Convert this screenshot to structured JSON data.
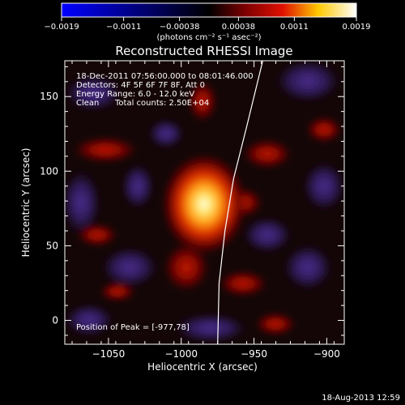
{
  "chart_data": {
    "type": "heatmap",
    "title": "Reconstructed RHESSI Image",
    "xlabel": "Heliocentric X (arcsec)",
    "ylabel": "Heliocentric Y (arcsec)",
    "xlim": [
      -1080,
      -888
    ],
    "ylim": [
      -16,
      174
    ],
    "x_ticks": [
      -1050,
      -1000,
      -950,
      -900
    ],
    "x_tick_labels": [
      "−1050",
      "−1000",
      "−950",
      "−900"
    ],
    "y_ticks": [
      0,
      50,
      100,
      150
    ],
    "y_tick_labels": [
      "0",
      "50",
      "100",
      "150"
    ],
    "colorbar": {
      "ticks": [
        -0.0019,
        -0.0011,
        -0.00038,
        0.00038,
        0.0011,
        0.0019
      ],
      "tick_labels": [
        "−0.0019",
        "−0.0011",
        "−0.00038",
        "0.00038",
        "0.0011",
        "0.0019"
      ],
      "unit_label": "(photons cm⁻² s⁻¹ asec⁻²)",
      "colormap": [
        "#0000ff",
        "#000000",
        "#ff0000",
        "#ffff00",
        "#ffffff"
      ]
    },
    "peak": {
      "x": -977,
      "y": 78
    },
    "annotations": {
      "line1": "18-Dec-2011 07:56:00.000 to 08:01:46.000",
      "line2": "Detectors: 4F 5F 6F 7F 8F, Att 0",
      "line3": "Energy Range: 6.0 - 12.0 keV",
      "line4a": "Clean",
      "line4b": "Total counts: 2.50E+04",
      "peak_text": "Position of Peak = [-977,78]"
    },
    "limb_curve": [
      {
        "x": -944,
        "y": 174
      },
      {
        "x": -955,
        "y": 130
      },
      {
        "x": -964,
        "y": 95
      },
      {
        "x": -970,
        "y": 60
      },
      {
        "x": -974,
        "y": 25
      },
      {
        "x": -975,
        "y": -16
      }
    ]
  },
  "footer": {
    "timestamp": "18-Aug-2013 12:59"
  }
}
